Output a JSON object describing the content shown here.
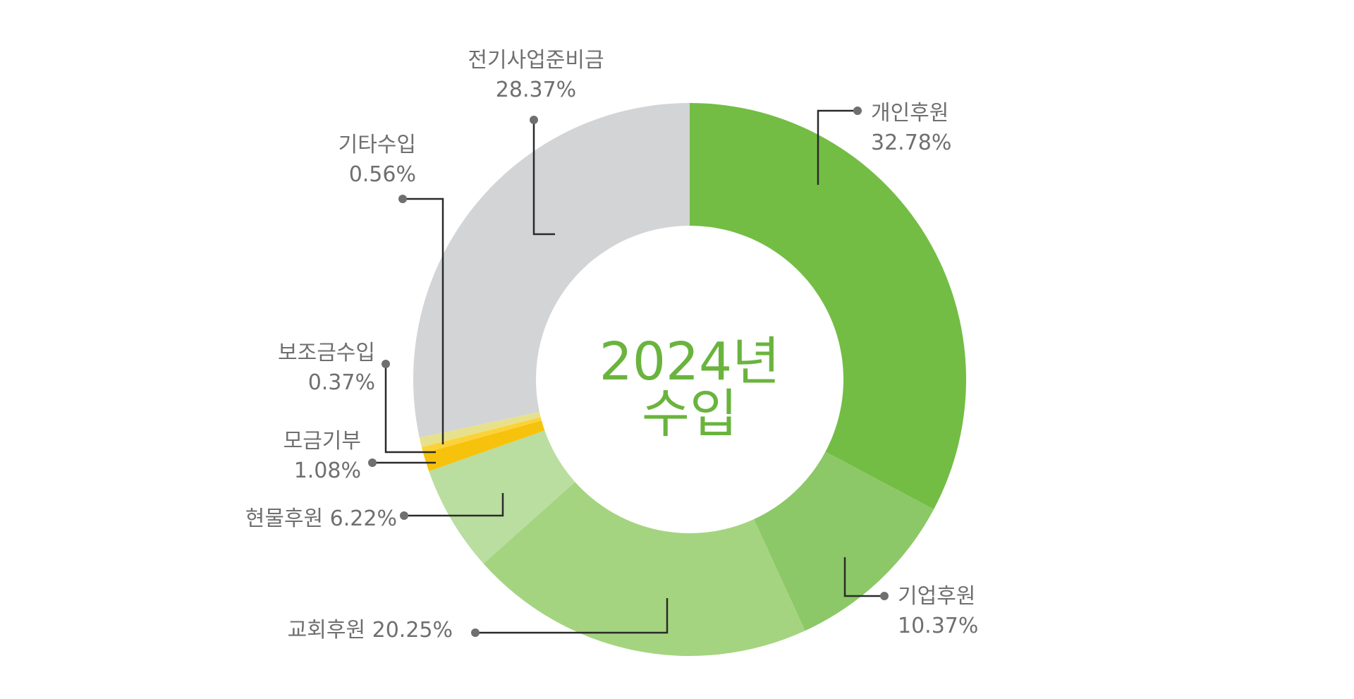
{
  "chart_data": {
    "type": "pie",
    "variant": "donut",
    "center_label": [
      "2024년",
      "수입"
    ],
    "slices": [
      {
        "name": "개인후원",
        "value": 32.78,
        "value_label": "32.78%",
        "color": "#73bd45"
      },
      {
        "name": "기업후원",
        "value": 10.37,
        "value_label": "10.37%",
        "color": "#8cc867"
      },
      {
        "name": "교회후원",
        "value": 20.25,
        "value_label": "20.25%",
        "color": "#a5d480"
      },
      {
        "name": "현물후원",
        "value": 6.22,
        "value_label": "6.22%",
        "color": "#badda0"
      },
      {
        "name": "모금기부",
        "value": 1.08,
        "value_label": "1.08%",
        "color": "#f7c20c"
      },
      {
        "name": "보조금수입",
        "value": 0.37,
        "value_label": "0.37%",
        "color": "#fbd338"
      },
      {
        "name": "기타수입",
        "value": 0.56,
        "value_label": "0.56%",
        "color": "#e8e18c"
      },
      {
        "name": "전기사업준비금",
        "value": 28.37,
        "value_label": "28.37%",
        "color": "#d3d4d6"
      }
    ]
  }
}
